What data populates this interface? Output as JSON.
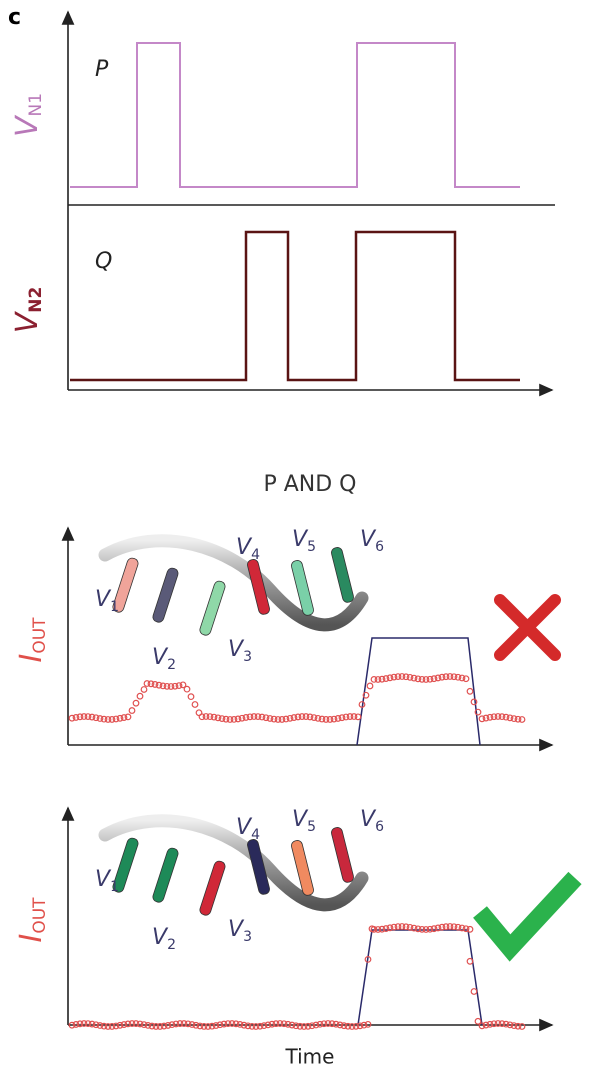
{
  "panel_label": "c",
  "traces": [
    {
      "axis_label": {
        "symbol": "V",
        "subscript": "N1"
      },
      "input": "P"
    },
    {
      "axis_label": {
        "symbol": "V",
        "subscript": "N2"
      },
      "input": "Q"
    }
  ],
  "operation": "P AND Q",
  "outputs": [
    {
      "axis_label": {
        "symbol": "I",
        "subscript": "OUT"
      },
      "strands": [
        {
          "symbol": "V",
          "subscript": "1"
        },
        {
          "symbol": "V",
          "subscript": "2"
        },
        {
          "symbol": "V",
          "subscript": "3"
        },
        {
          "symbol": "V",
          "subscript": "4"
        },
        {
          "symbol": "V",
          "subscript": "5"
        },
        {
          "symbol": "V",
          "subscript": "6"
        }
      ]
    },
    {
      "axis_label": {
        "symbol": "I",
        "subscript": "OUT"
      },
      "strands": [
        {
          "symbol": "V",
          "subscript": "1"
        },
        {
          "symbol": "V",
          "subscript": "2"
        },
        {
          "symbol": "V",
          "subscript": "3"
        },
        {
          "symbol": "V",
          "subscript": "4"
        },
        {
          "symbol": "V",
          "subscript": "5"
        },
        {
          "symbol": "V",
          "subscript": "6"
        }
      ]
    }
  ],
  "x_axis_label": "Time"
}
